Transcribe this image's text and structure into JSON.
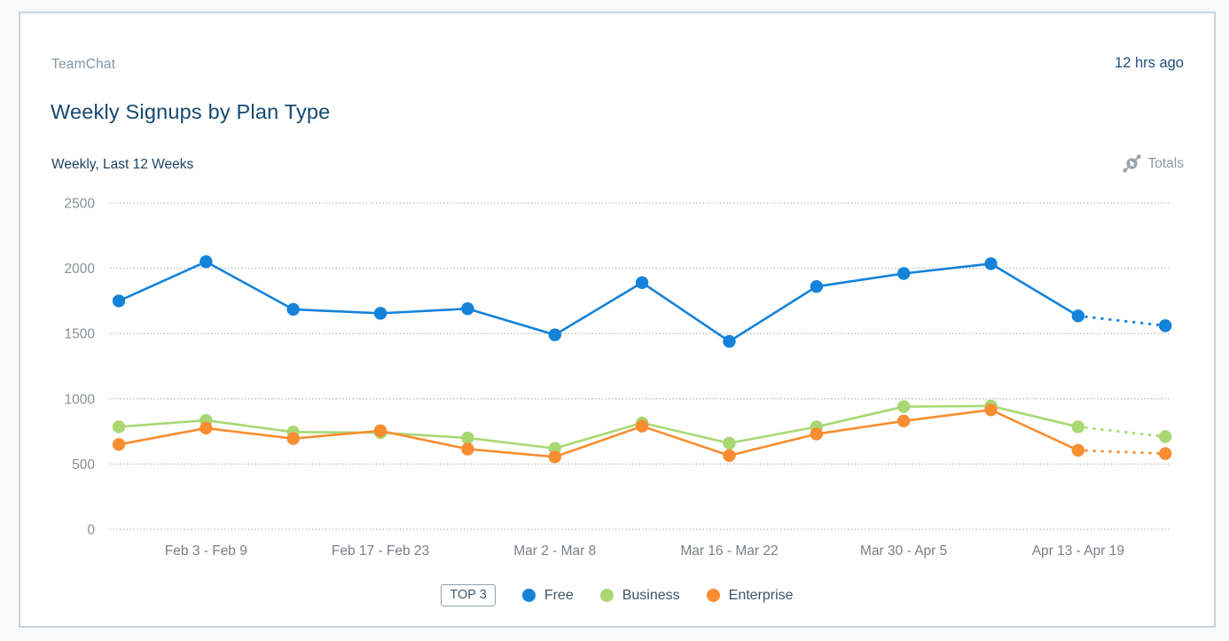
{
  "card": {
    "source": "TeamChat",
    "updated": "12 hrs ago",
    "title": "Weekly Signups by Plan Type",
    "subtitle": "Weekly, Last 12 Weeks",
    "totals_label": "Totals",
    "totals_icon": "trend-line-cursor-icon",
    "colors": {
      "card_border": "#c9d2d9",
      "page_background": "#fafafa",
      "title_text": "#14496f",
      "gridline": "#b5b9bc"
    }
  },
  "legend": {
    "badge": "TOP 3",
    "items": [
      {
        "label": "Free",
        "color": "#1482d9"
      },
      {
        "label": "Business",
        "color": "#a9d873"
      },
      {
        "label": "Enterprise",
        "color": "#f88d31"
      }
    ]
  },
  "chart_data": {
    "type": "line",
    "title": "Weekly Signups by Plan Type",
    "subtitle": "Weekly, Last 12 Weeks",
    "xlabel": "",
    "ylabel": "",
    "num_points": 13,
    "x_tick_labels": [
      "Feb 3 - Feb 9",
      "Feb 17 - Feb 23",
      "Mar 2 - Mar 8",
      "Mar 16 - Mar 22",
      "Mar 30 - Apr 5",
      "Apr 13 - Apr 19"
    ],
    "x_tick_point_indices": [
      1,
      3,
      5,
      7,
      9,
      11
    ],
    "y_ticks": [
      0,
      500,
      1000,
      1500,
      2000,
      2500
    ],
    "ylim": [
      0,
      2500
    ],
    "grid": "horizontal-dotted",
    "legend_position": "bottom",
    "last_segment_style": "dotted",
    "series": [
      {
        "name": "Free",
        "color": "#1482d9",
        "values": [
          1750,
          2050,
          1685,
          1655,
          1690,
          1490,
          1890,
          1440,
          1860,
          1960,
          2035,
          1635,
          1560
        ]
      },
      {
        "name": "Business",
        "color": "#a9d873",
        "values": [
          785,
          835,
          745,
          740,
          700,
          620,
          815,
          660,
          785,
          940,
          945,
          785,
          710
        ]
      },
      {
        "name": "Enterprise",
        "color": "#f88d31",
        "values": [
          650,
          775,
          695,
          755,
          615,
          555,
          790,
          565,
          730,
          830,
          915,
          605,
          580
        ]
      }
    ]
  }
}
